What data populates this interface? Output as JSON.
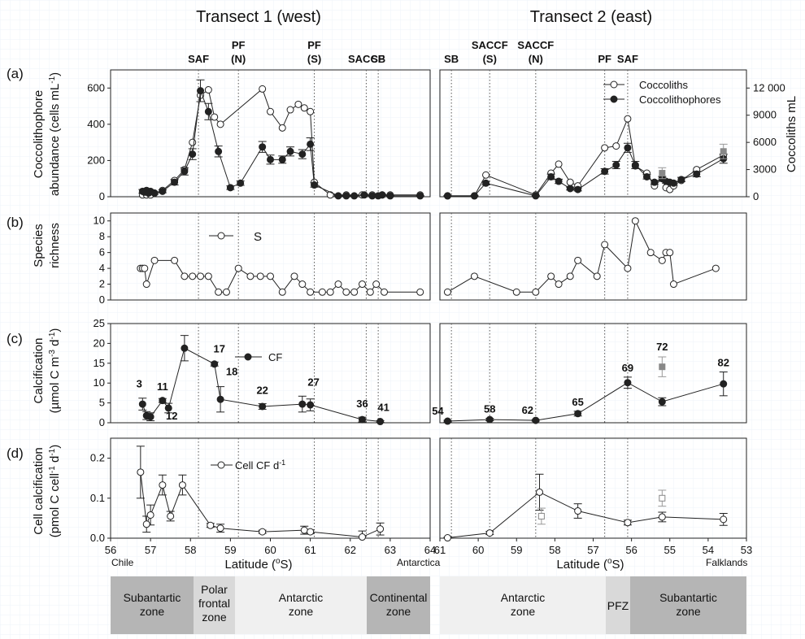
{
  "titles": {
    "left": "Transect 1 (west)",
    "right": "Transect 2 (east)"
  },
  "fronts": {
    "left": [
      {
        "line1": "SAF",
        "line2": "",
        "lat": 58.2
      },
      {
        "line1": "PF",
        "line2": "(N)",
        "lat": 59.2
      },
      {
        "line1": "PF",
        "line2": "(S)",
        "lat": 61.1
      },
      {
        "line1": "SACCF",
        "line2": "",
        "lat": 62.4
      },
      {
        "line1": "SB",
        "line2": "",
        "lat": 62.7
      }
    ],
    "right": [
      {
        "line1": "SB",
        "line2": "",
        "lat": 60.7
      },
      {
        "line1": "SACCF",
        "line2": "(S)",
        "lat": 59.7
      },
      {
        "line1": "SACCF",
        "line2": "(N)",
        "lat": 58.5
      },
      {
        "line1": "PF",
        "line2": "",
        "lat": 56.7
      },
      {
        "line1": "SAF",
        "line2": "",
        "lat": 56.1
      }
    ]
  },
  "panels": {
    "a": {
      "tag": "(a)",
      "ylabel1": "Coccolithophore",
      "ylabel2": "abundance (cells mL",
      "ylabel2_sup": "-1",
      "ylabel2_end": ")",
      "yticks": [
        "0",
        "200",
        "400",
        "600"
      ],
      "y2label": "Coccoliths mL",
      "y2ticks": [
        "0",
        "3000",
        "6000",
        "9000",
        "12 000"
      ],
      "legend": [
        "Coccoliths",
        "Coccolithophores"
      ]
    },
    "b": {
      "tag": "(b)",
      "ylabel1": "Species",
      "ylabel2": "richness",
      "yticks": [
        "0",
        "2",
        "4",
        "6",
        "8",
        "10"
      ],
      "legend": [
        "S"
      ]
    },
    "c": {
      "tag": "(c)",
      "ylabel1": "Calcification",
      "ylabel2": "(µmol C m",
      "ylabel2_sup": "-3",
      "ylabel2_mid": " d",
      "ylabel2_sup2": "-1",
      "ylabel2_end": ")",
      "yticks": [
        "0",
        "5",
        "10",
        "15",
        "20",
        "25"
      ],
      "legend": [
        "CF"
      ]
    },
    "d": {
      "tag": "(d)",
      "ylabel1": "Cell calcification",
      "ylabel2": "(pmol C cell",
      "ylabel2_sup": "-1",
      "ylabel2_mid": " d",
      "ylabel2_sup2": "-1",
      "ylabel2_end": ")",
      "yticks": [
        "0.0",
        "0.1",
        "0.2"
      ],
      "legend": [
        "Cell CF d"
      ],
      "legend_sup": "-1"
    }
  },
  "xaxis": {
    "left_ticks": [
      "56",
      "57",
      "58",
      "59",
      "60",
      "61",
      "62",
      "63",
      "64"
    ],
    "right_ticks": [
      "61",
      "60",
      "59",
      "58",
      "57",
      "56",
      "55",
      "54",
      "53"
    ],
    "label_left": "Latitude (",
    "label_sup": "o",
    "label_end": "S)",
    "place_left_start": "Chile",
    "place_left_end": "Antarctica",
    "place_right_end": "Falklands"
  },
  "zones": [
    {
      "name1": "Subantartic",
      "name2": "zone",
      "name3": "",
      "shade": "dark"
    },
    {
      "name1": "Polar",
      "name2": "frontal",
      "name3": "zone",
      "shade": "mid"
    },
    {
      "name1": "Antarctic",
      "name2": "zone",
      "name3": "",
      "shade": "light"
    },
    {
      "name1": "Continental",
      "name2": "zone",
      "name3": "",
      "shade": "dark"
    },
    {
      "name1": "Antarctic",
      "name2": "zone",
      "name3": "",
      "shade": "light"
    },
    {
      "name1": "PFZ",
      "name2": "",
      "name3": "",
      "shade": "mid"
    },
    {
      "name1": "Subantartic",
      "name2": "zone",
      "name3": "",
      "shade": "dark"
    }
  ],
  "chart_data": {
    "type": "line",
    "panel_a": {
      "ylim": [
        0,
        700
      ],
      "y2lim": [
        0,
        14000
      ],
      "left": {
        "coccolithophores": {
          "x": [
            56.8,
            56.85,
            56.9,
            56.95,
            57.0,
            57.1,
            57.3,
            57.6,
            57.85,
            58.05,
            58.25,
            58.45,
            58.7,
            59.0,
            59.25,
            59.8,
            60.0,
            60.3,
            60.5,
            60.8,
            61.0,
            61.1,
            61.7,
            61.9,
            62.1,
            62.35,
            62.55,
            62.7,
            62.8,
            63.0,
            63.75
          ],
          "y": [
            30,
            25,
            35,
            20,
            30,
            20,
            30,
            80,
            140,
            235,
            585,
            470,
            250,
            50,
            75,
            275,
            205,
            205,
            250,
            235,
            290,
            65,
            5,
            5,
            5,
            10,
            5,
            5,
            10,
            5,
            5
          ],
          "err": [
            10,
            8,
            10,
            6,
            8,
            6,
            8,
            15,
            20,
            30,
            60,
            45,
            30,
            10,
            12,
            30,
            25,
            20,
            25,
            25,
            35,
            12,
            2,
            2,
            2,
            4,
            2,
            2,
            3,
            2,
            2
          ]
        },
        "coccoliths": {
          "x": [
            56.8,
            56.9,
            57.0,
            57.1,
            57.3,
            57.6,
            57.85,
            58.05,
            58.25,
            58.45,
            58.6,
            58.75,
            59.8,
            60.0,
            60.3,
            60.5,
            60.7,
            60.85,
            61.0,
            61.1,
            61.5,
            61.9,
            62.3,
            62.55,
            62.8,
            63.0,
            63.75
          ],
          "y": [
            10,
            10,
            10,
            20,
            35,
            90,
            150,
            300,
            560,
            590,
            440,
            400,
            595,
            470,
            380,
            480,
            510,
            490,
            470,
            80,
            10,
            10,
            10,
            10,
            10,
            10,
            10
          ]
        }
      },
      "right": {
        "coccolithophores": {
          "x": [
            60.8,
            60.1,
            59.8,
            58.5,
            58.1,
            57.9,
            57.6,
            57.4,
            56.7,
            56.4,
            56.1,
            55.9,
            55.6,
            55.4,
            55.2,
            55.1,
            55.0,
            54.9,
            54.7,
            54.3,
            53.6
          ],
          "y": [
            5,
            5,
            75,
            5,
            110,
            85,
            45,
            40,
            140,
            175,
            270,
            175,
            110,
            80,
            100,
            85,
            80,
            75,
            95,
            125,
            210
          ],
          "err": [
            2,
            2,
            10,
            2,
            15,
            12,
            8,
            8,
            15,
            20,
            25,
            20,
            12,
            10,
            12,
            10,
            10,
            10,
            12,
            15,
            25
          ]
        },
        "coccoliths": {
          "x": [
            60.8,
            60.1,
            59.8,
            58.5,
            58.1,
            57.9,
            57.6,
            57.4,
            56.7,
            56.4,
            56.1,
            55.9,
            55.6,
            55.4,
            55.2,
            55.1,
            55.0,
            54.9,
            54.7,
            54.3,
            53.6
          ],
          "y": [
            5,
            5,
            120,
            10,
            130,
            180,
            80,
            60,
            270,
            280,
            430,
            170,
            130,
            60,
            100,
            50,
            40,
            60,
            90,
            150,
            230
          ]
        },
        "outliers": {
          "x": [
            55.2,
            53.6
          ],
          "y": [
            130,
            250
          ],
          "err": [
            30,
            40
          ]
        }
      }
    },
    "panel_b": {
      "ylim": [
        0,
        11
      ],
      "left": {
        "x": [
          56.75,
          56.8,
          56.85,
          56.9,
          57.1,
          57.6,
          57.85,
          58.05,
          58.25,
          58.45,
          58.7,
          58.9,
          59.2,
          59.5,
          59.75,
          60.0,
          60.3,
          60.6,
          60.8,
          61.0,
          61.3,
          61.5,
          61.7,
          61.9,
          62.1,
          62.3,
          62.5,
          62.65,
          62.85,
          63.75
        ],
        "y": [
          4,
          4,
          4,
          2,
          5,
          5,
          3,
          3,
          3,
          3,
          1,
          1,
          4,
          3,
          3,
          3,
          1,
          3,
          2,
          1,
          1,
          1,
          2,
          1,
          1,
          2,
          1,
          2,
          1,
          1
        ]
      },
      "right": {
        "x": [
          60.8,
          60.1,
          59.0,
          58.5,
          58.1,
          57.9,
          57.6,
          57.4,
          56.9,
          56.7,
          56.1,
          55.9,
          55.5,
          55.2,
          55.1,
          55.0,
          54.9,
          53.8
        ],
        "y": [
          1,
          3,
          1,
          1,
          3,
          2,
          3,
          5,
          3,
          7,
          4,
          10,
          6,
          5,
          6,
          6,
          2,
          4
        ]
      }
    },
    "panel_c": {
      "ylim": [
        0,
        25
      ],
      "left": {
        "x": [
          56.8,
          56.9,
          57.0,
          57.3,
          57.45,
          57.85,
          58.6,
          58.75,
          59.8,
          60.8,
          61.0,
          62.3,
          62.75
        ],
        "y": [
          4.7,
          1.8,
          1.5,
          5.6,
          3.7,
          18.8,
          14.8,
          5.9,
          4.1,
          4.7,
          4.5,
          0.8,
          0.3
        ],
        "err": [
          1.5,
          1.0,
          1.0,
          0.5,
          1.2,
          3.2,
          0.5,
          3.2,
          0.7,
          2.0,
          1.5,
          0.6,
          0.2
        ],
        "labels": [
          "3",
          "",
          "",
          "11",
          "12",
          "",
          "17",
          "18",
          "22",
          "",
          "27",
          "36",
          "41"
        ]
      },
      "right": {
        "x": [
          60.8,
          59.7,
          58.5,
          57.4,
          56.1,
          55.2,
          53.6
        ],
        "y": [
          0.4,
          0.8,
          0.6,
          2.3,
          10.1,
          5.3,
          9.8
        ],
        "err": [
          0.2,
          0.3,
          0.2,
          0.6,
          1.4,
          1.0,
          3.0
        ],
        "labels": [
          "54",
          "58",
          "62",
          "65",
          "69",
          "",
          "82"
        ]
      },
      "outlier": {
        "x": 55.2,
        "y": 14.1,
        "err": 2.5,
        "label": "72"
      }
    },
    "panel_d": {
      "ylim": [
        0,
        0.25
      ],
      "left": {
        "x": [
          56.75,
          56.9,
          57.0,
          57.3,
          57.5,
          57.8,
          58.5,
          58.75,
          59.8,
          60.85,
          61.0,
          62.3,
          62.75
        ],
        "y": [
          0.165,
          0.035,
          0.058,
          0.133,
          0.055,
          0.133,
          0.032,
          0.025,
          0.016,
          0.02,
          0.016,
          0.003,
          0.023
        ],
        "err": [
          0.065,
          0.02,
          0.025,
          0.025,
          0.012,
          0.025,
          0.005,
          0.01,
          0.004,
          0.01,
          0.005,
          0.015,
          0.015
        ]
      },
      "right": {
        "x": [
          60.8,
          59.7,
          58.4,
          57.4,
          56.1,
          55.2,
          53.6
        ],
        "y": [
          0.001,
          0.013,
          0.115,
          0.068,
          0.039,
          0.053,
          0.047
        ],
        "err": [
          0.001,
          0.004,
          0.045,
          0.018,
          0.006,
          0.012,
          0.015
        ]
      },
      "outliers": {
        "x": [
          58.35,
          55.2
        ],
        "y": [
          0.055,
          0.1
        ],
        "err": [
          0.02,
          0.02
        ]
      }
    }
  }
}
